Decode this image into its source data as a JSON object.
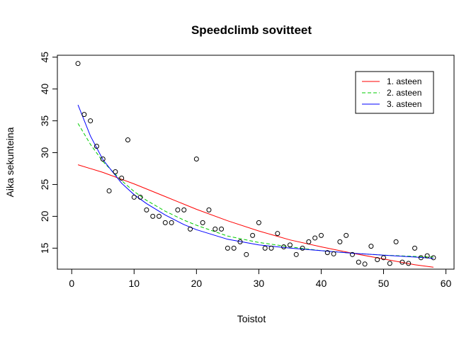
{
  "chart_data": {
    "type": "scatter",
    "title": "Speedclimb sovitteet",
    "xlabel": "Toistot",
    "ylabel": "Aika sekunteina",
    "xlim": [
      -2.3,
      61.3
    ],
    "ylim": [
      11.7,
      45.3
    ],
    "xticks": [
      0,
      10,
      20,
      30,
      40,
      50,
      60
    ],
    "yticks": [
      15,
      20,
      25,
      30,
      35,
      40,
      45
    ],
    "grid": false,
    "legend_position": "top-right",
    "points": {
      "x": [
        1,
        2,
        3,
        4,
        5,
        6,
        7,
        8,
        9,
        10,
        11,
        12,
        13,
        14,
        15,
        16,
        17,
        18,
        19,
        20,
        21,
        22,
        23,
        24,
        25,
        26,
        27,
        28,
        29,
        30,
        31,
        32,
        33,
        34,
        35,
        36,
        37,
        38,
        39,
        40,
        41,
        42,
        43,
        44,
        45,
        46,
        47,
        48,
        49,
        50,
        51,
        52,
        53,
        54,
        55,
        56,
        57,
        58
      ],
      "y": [
        44,
        36,
        35,
        31,
        29,
        24,
        27,
        26,
        32,
        23,
        23,
        21,
        20,
        20,
        19,
        19,
        21,
        21,
        18,
        29,
        19,
        21,
        18,
        18,
        15,
        15,
        16,
        14,
        17,
        19,
        15,
        15,
        17.3,
        15.2,
        15.5,
        14,
        15,
        16,
        16.6,
        17,
        14.3,
        14.1,
        16,
        17,
        14,
        12.8,
        12.5,
        15.3,
        13.2,
        13.5,
        12.6,
        16,
        12.8,
        12.6,
        15,
        13.5,
        13.8,
        13.5
      ]
    },
    "series": [
      {
        "name": "1. asteen",
        "color": "#ff0000",
        "dash": "solid",
        "x": [
          1,
          5,
          10,
          15,
          20,
          25,
          30,
          35,
          40,
          45,
          50,
          55,
          58
        ],
        "y": [
          28.1,
          26.9,
          25.1,
          23.1,
          21.1,
          19.3,
          17.7,
          16.3,
          15.2,
          14.2,
          13.3,
          12.4,
          12.0
        ]
      },
      {
        "name": "2. asteen",
        "color": "#00cc00",
        "dash": "dashed",
        "x": [
          1,
          3,
          5,
          8,
          10,
          12,
          15,
          18,
          20,
          25,
          30,
          35,
          40,
          45,
          50,
          55,
          58
        ],
        "y": [
          34.6,
          31.3,
          28.6,
          25.6,
          23.9,
          22.5,
          20.8,
          19.4,
          18.6,
          16.9,
          15.9,
          15.2,
          14.6,
          14.2,
          13.9,
          13.7,
          13.6
        ]
      },
      {
        "name": "3. asteen",
        "color": "#0000ff",
        "dash": "solid",
        "x": [
          1,
          3,
          5,
          8,
          10,
          12,
          15,
          18,
          20,
          25,
          30,
          35,
          40,
          45,
          50,
          55,
          58
        ],
        "y": [
          37.5,
          32.6,
          28.9,
          25.2,
          23.4,
          22.0,
          20.2,
          18.7,
          17.9,
          16.4,
          15.5,
          15.0,
          14.6,
          14.2,
          13.9,
          13.6,
          13.4
        ]
      }
    ]
  },
  "colors": {
    "axis": "#000000",
    "background": "#ffffff"
  }
}
